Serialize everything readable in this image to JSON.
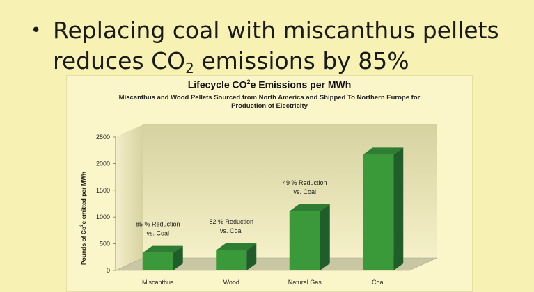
{
  "slide": {
    "bullet_symbol": "•",
    "line1": "Replacing coal with miscanthus pellets",
    "line2_pre": "reduces CO",
    "line2_sub": "2",
    "line2_post": " emissions by 85%"
  },
  "chart_data": {
    "type": "bar",
    "title_pre": "Lifecycle CO",
    "title_sup": "2",
    "title_post": "e Emissions per MWh",
    "subtitle_line1": "Miscanthus and Wood Pellets Sourced from North America and Shipped To Northern Europe for",
    "subtitle_line2": "Production of Electricity",
    "ylabel_pre": "Pounds of Co",
    "ylabel_sup": "2",
    "ylabel_post": "e emitted per MWh",
    "xlabel": "",
    "ylim": [
      0,
      2500
    ],
    "yticks": [
      "0",
      "500",
      "1000",
      "1500",
      "2000",
      "2500"
    ],
    "categories": [
      "Miscanthus",
      "Wood",
      "Natural Gas",
      "Coal"
    ],
    "values": [
      330,
      380,
      1110,
      2170
    ],
    "annotations": [
      {
        "category": "Miscanthus",
        "line1": "85 % Reduction",
        "line2": "vs. Coal"
      },
      {
        "category": "Wood",
        "line1": "82 % Reduction",
        "line2": "vs. Coal"
      },
      {
        "category": "Natural Gas",
        "line1": "49 % Reduction",
        "line2": "vs. Coal"
      }
    ],
    "grid": false,
    "legend": "none",
    "colors": {
      "bar_front": "#3a9a3a",
      "bar_side": "#1f5e2a",
      "bar_top": "#2e7d33",
      "back_wall_top": "#d6d2a0",
      "back_wall_bottom": "#f5f0c8",
      "floor": "#c9c6a4"
    }
  }
}
